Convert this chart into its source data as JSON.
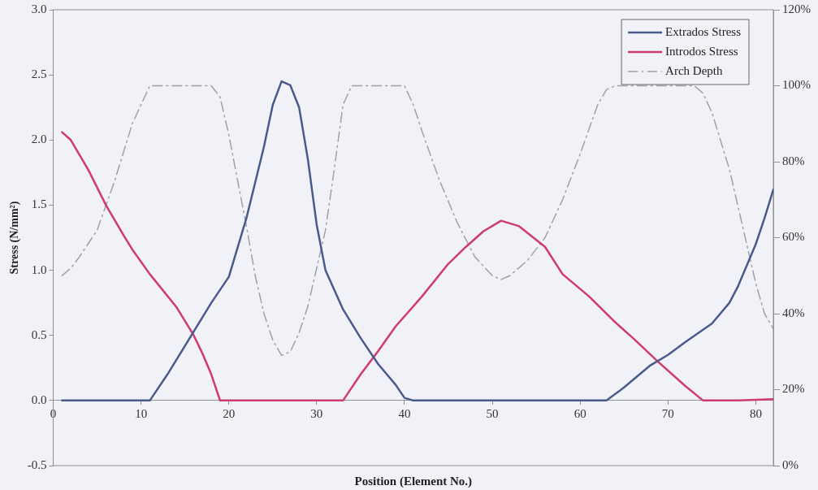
{
  "chart_data": {
    "type": "line",
    "xlabel": "Position (Element No.)",
    "ylabel": "Stress (N/mm²)",
    "xlim": [
      0,
      82
    ],
    "xticks": [
      0,
      10,
      20,
      30,
      40,
      50,
      60,
      70,
      80
    ],
    "ylim": [
      -0.5,
      3
    ],
    "yticks": [
      {
        "value": -0.5,
        "label": "-0.5"
      },
      {
        "value": 0,
        "label": "0.0"
      },
      {
        "value": 0.5,
        "label": "0.5"
      },
      {
        "value": 1,
        "label": "1.0"
      },
      {
        "value": 1.5,
        "label": "1.5"
      },
      {
        "value": 2,
        "label": "2.0"
      },
      {
        "value": 2.5,
        "label": "2.5"
      },
      {
        "value": 3,
        "label": "3.0"
      }
    ],
    "y2lim": [
      0,
      120
    ],
    "y2ticks": [
      {
        "value": 0,
        "label": "0%"
      },
      {
        "value": 20,
        "label": "20%"
      },
      {
        "value": 40,
        "label": "40%"
      },
      {
        "value": 60,
        "label": "60%"
      },
      {
        "value": 80,
        "label": "80%"
      },
      {
        "value": 100,
        "label": "100%"
      },
      {
        "value": 120,
        "label": "120%"
      }
    ],
    "grid": false,
    "legend": "top right",
    "marker": "none",
    "series": [
      {
        "name": "Extrados Stress",
        "color": "#4b5a8c",
        "line_style": "solid",
        "x": [
          1,
          5,
          11,
          13,
          15,
          18,
          20,
          22,
          24,
          25,
          26,
          27,
          28,
          29,
          30,
          31,
          33,
          35,
          37,
          39,
          40,
          41,
          50,
          62,
          63,
          65,
          68,
          70,
          72,
          75,
          77,
          78,
          80,
          81,
          82
        ],
        "values": [
          0,
          0,
          0,
          0.2,
          0.42,
          0.75,
          0.95,
          1.4,
          1.95,
          2.27,
          2.45,
          2.42,
          2.25,
          1.85,
          1.35,
          1.0,
          0.7,
          0.48,
          0.28,
          0.12,
          0.02,
          0,
          0,
          0,
          0,
          0.1,
          0.27,
          0.35,
          0.45,
          0.59,
          0.75,
          0.88,
          1.2,
          1.4,
          1.62
        ]
      },
      {
        "name": "Introdos Stress",
        "color": "#cf3b6c",
        "line_style": "solid",
        "x": [
          1,
          2,
          4,
          6,
          8,
          9,
          11,
          14,
          16,
          17,
          18,
          19,
          25,
          33,
          35,
          37,
          39,
          42,
          45,
          47,
          49,
          51,
          53,
          56,
          58,
          61,
          64,
          66,
          69,
          72,
          74,
          78,
          82
        ],
        "values": [
          2.06,
          2.0,
          1.77,
          1.5,
          1.27,
          1.16,
          0.97,
          0.72,
          0.5,
          0.36,
          0.2,
          0,
          0,
          0,
          0.2,
          0.38,
          0.57,
          0.8,
          1.05,
          1.18,
          1.3,
          1.38,
          1.34,
          1.18,
          0.97,
          0.8,
          0.6,
          0.48,
          0.29,
          0.11,
          0,
          0,
          0.01
        ]
      },
      {
        "name": "Arch Depth",
        "color": "#a0a0a8",
        "line_style": "dashed",
        "axis": "y2",
        "x": [
          1,
          2,
          3,
          5,
          7,
          9,
          11,
          18,
          19,
          20,
          22,
          23,
          24,
          25,
          26,
          27,
          28,
          29,
          30,
          31,
          32,
          33,
          34,
          40,
          41,
          42,
          44,
          46,
          48,
          50,
          51,
          52,
          54,
          56,
          58,
          60,
          62,
          63,
          64,
          73,
          74,
          75,
          77,
          79,
          80,
          81,
          82
        ],
        "values": [
          50,
          52,
          55,
          62,
          75,
          90,
          100,
          100,
          97,
          87,
          63,
          50,
          40,
          33,
          29,
          30,
          35,
          42,
          52,
          62,
          78,
          95,
          100,
          100,
          95,
          88,
          75,
          64,
          55,
          50,
          49,
          50,
          54,
          60,
          70,
          82,
          95,
          99,
          100,
          100,
          98,
          93,
          78,
          58,
          48,
          40,
          36
        ]
      }
    ]
  }
}
